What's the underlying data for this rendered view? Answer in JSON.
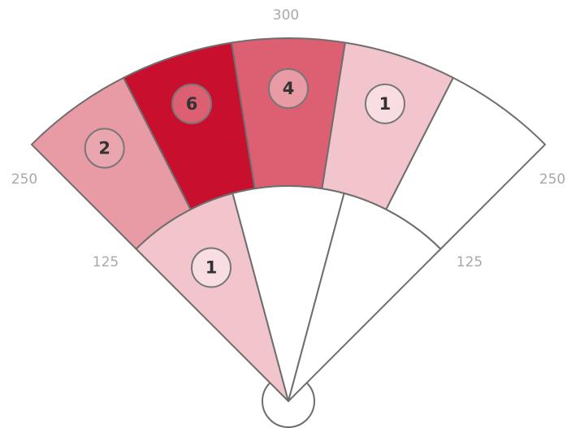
{
  "chart_data": {
    "type": "zone-fan",
    "zone_labels": [
      "300",
      "250",
      "250",
      "125",
      "125"
    ],
    "outer": [
      {
        "color": "#e89ba5",
        "badge": "#eaa6af",
        "count": 2
      },
      {
        "color": "#c8102e",
        "badge": "#dc5f72",
        "count": 6
      },
      {
        "color": "#dc5f72",
        "badge": "#e89ba5",
        "count": 4
      },
      {
        "color": "#f2c4cc",
        "badge": "#f8dde2",
        "count": 1
      },
      {
        "color": "#ffffff",
        "badge": null,
        "count": null
      }
    ],
    "inner": [
      {
        "color": "#f2c4cc",
        "badge": "#f8dde2",
        "count": 1
      },
      {
        "color": "#ffffff",
        "badge": null,
        "count": null
      },
      {
        "color": "#ffffff",
        "badge": null,
        "count": null
      }
    ]
  }
}
